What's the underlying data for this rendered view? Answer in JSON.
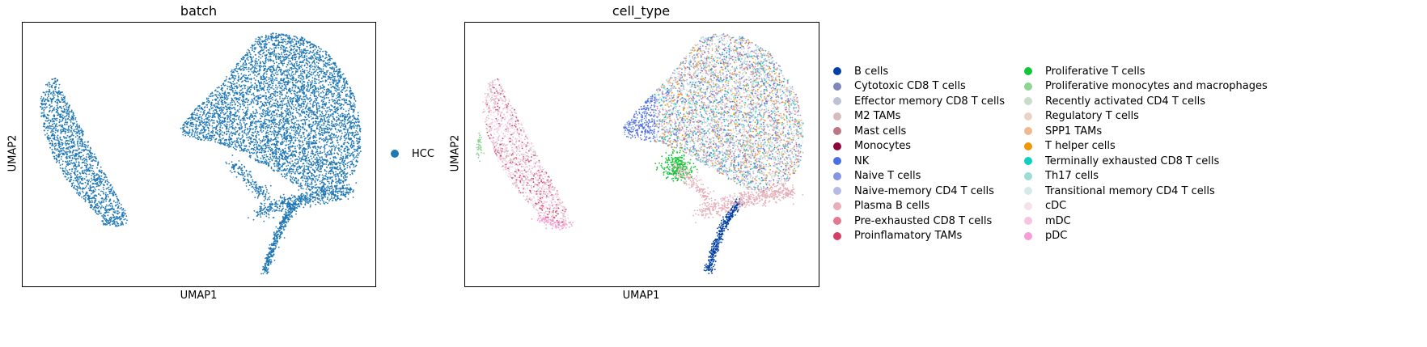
{
  "chart_data": [
    {
      "type": "scatter",
      "title": "batch",
      "xlabel": "UMAP1",
      "ylabel": "UMAP2",
      "grid": false,
      "legend_position": "right",
      "legend": [
        {
          "label": "HCC",
          "color": "#1f77b4"
        }
      ]
    },
    {
      "type": "scatter",
      "title": "cell_type",
      "xlabel": "UMAP1",
      "ylabel": "UMAP2",
      "grid": false,
      "legend_position": "right",
      "legend": [
        {
          "label": "B cells",
          "color": "#023fa5"
        },
        {
          "label": "Cytotoxic CD8 T cells",
          "color": "#7d87b9"
        },
        {
          "label": "Effector memory CD8 T cells",
          "color": "#bec1d4"
        },
        {
          "label": "M2 TAMs",
          "color": "#d6bcc0"
        },
        {
          "label": "Mast cells",
          "color": "#bb7784"
        },
        {
          "label": "Monocytes",
          "color": "#8e063b"
        },
        {
          "label": "NK",
          "color": "#4a6fe3"
        },
        {
          "label": "Naive T cells",
          "color": "#8595e1"
        },
        {
          "label": "Naive-memory CD4 T cells",
          "color": "#b5bbe3"
        },
        {
          "label": "Plasma B cells",
          "color": "#e6afb9"
        },
        {
          "label": "Pre-exhausted CD8 T cells",
          "color": "#e07b91"
        },
        {
          "label": "Proinflamatory TAMs",
          "color": "#d33f6a"
        },
        {
          "label": "Proliferative T cells",
          "color": "#11c638"
        },
        {
          "label": "Proliferative monocytes and macrophages",
          "color": "#8dd593"
        },
        {
          "label": "Recently activated CD4 T cells",
          "color": "#c6dec7"
        },
        {
          "label": "Regulatory T cells",
          "color": "#ead3c6"
        },
        {
          "label": "SPP1 TAMs",
          "color": "#f0b98d"
        },
        {
          "label": "T helper cells",
          "color": "#ef9708"
        },
        {
          "label": "Terminally exhausted CD8 T cells",
          "color": "#0fcfc0"
        },
        {
          "label": "Th17 cells",
          "color": "#9cded6"
        },
        {
          "label": "Transitional memory CD4 T cells",
          "color": "#d5eae7"
        },
        {
          "label": "cDC",
          "color": "#f3e1eb"
        },
        {
          "label": "mDC",
          "color": "#f6c4e1"
        },
        {
          "label": "pDC",
          "color": "#f79cd4"
        }
      ]
    }
  ]
}
